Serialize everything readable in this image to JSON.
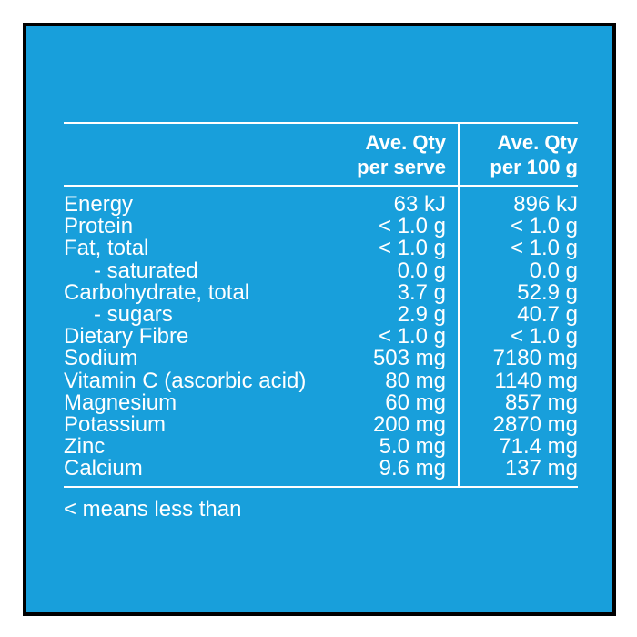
{
  "colors": {
    "background": "#189fdb",
    "border": "#000000",
    "text": "#ffffff"
  },
  "header": {
    "col1_line1": "Ave. Qty",
    "col1_line2": "per serve",
    "col2_line1": "Ave. Qty",
    "col2_line2": "per 100 g"
  },
  "rows": [
    {
      "name": "Energy",
      "per_serve": "63 kJ",
      "per_100g": "896 kJ"
    },
    {
      "name": "Protein",
      "per_serve": "< 1.0 g",
      "per_100g": "< 1.0 g"
    },
    {
      "name": "Fat, total",
      "per_serve": "< 1.0 g",
      "per_100g": "< 1.0 g"
    },
    {
      "name": "- saturated",
      "per_serve": "0.0 g",
      "per_100g": "0.0 g"
    },
    {
      "name": "Carbohydrate, total",
      "per_serve": "3.7 g",
      "per_100g": "52.9 g"
    },
    {
      "name": "- sugars",
      "per_serve": "2.9 g",
      "per_100g": "40.7 g"
    },
    {
      "name": "Dietary Fibre",
      "per_serve": "< 1.0 g",
      "per_100g": "< 1.0 g"
    },
    {
      "name": "Sodium",
      "per_serve": "503 mg",
      "per_100g": "7180 mg"
    },
    {
      "name": "Vitamin C (ascorbic acid)",
      "per_serve": "80 mg",
      "per_100g": "1140 mg"
    },
    {
      "name": "Magnesium",
      "per_serve": "60 mg",
      "per_100g": "857 mg"
    },
    {
      "name": "Potassium",
      "per_serve": "200 mg",
      "per_100g": "2870 mg"
    },
    {
      "name": "Zinc",
      "per_serve": "5.0 mg",
      "per_100g": "71.4 mg"
    },
    {
      "name": "Calcium",
      "per_serve": "9.6 mg",
      "per_100g": "137 mg"
    }
  ],
  "footnote": "< means less than"
}
